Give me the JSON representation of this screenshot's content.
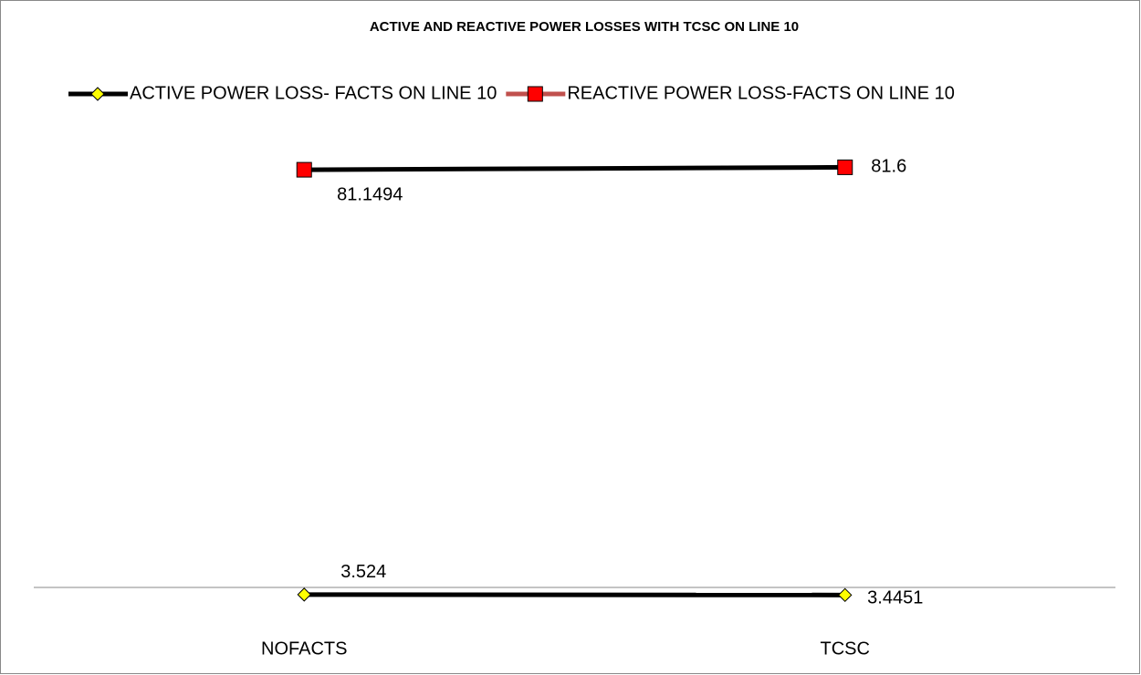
{
  "chart_data": {
    "type": "line",
    "title": "ACTIVE AND REACTIVE POWER LOSSES WITH TCSC ON LINE 10",
    "categories": [
      "NOFACTS",
      "TCSC"
    ],
    "ylim": [
      0,
      90
    ],
    "series": [
      {
        "name": "ACTIVE POWER LOSS- FACTS ON LINE 10",
        "color": "#000000",
        "legend_color": "#000000",
        "marker": "diamond",
        "marker_color": "#ffff00",
        "values": [
          3.524,
          3.4451
        ]
      },
      {
        "name": "REACTIVE POWER LOSS-FACTS ON LINE 10",
        "color": "#000000",
        "legend_color": "#c0504d",
        "marker": "square",
        "marker_color": "#ff0000",
        "values": [
          81.1494,
          81.6
        ]
      }
    ]
  }
}
